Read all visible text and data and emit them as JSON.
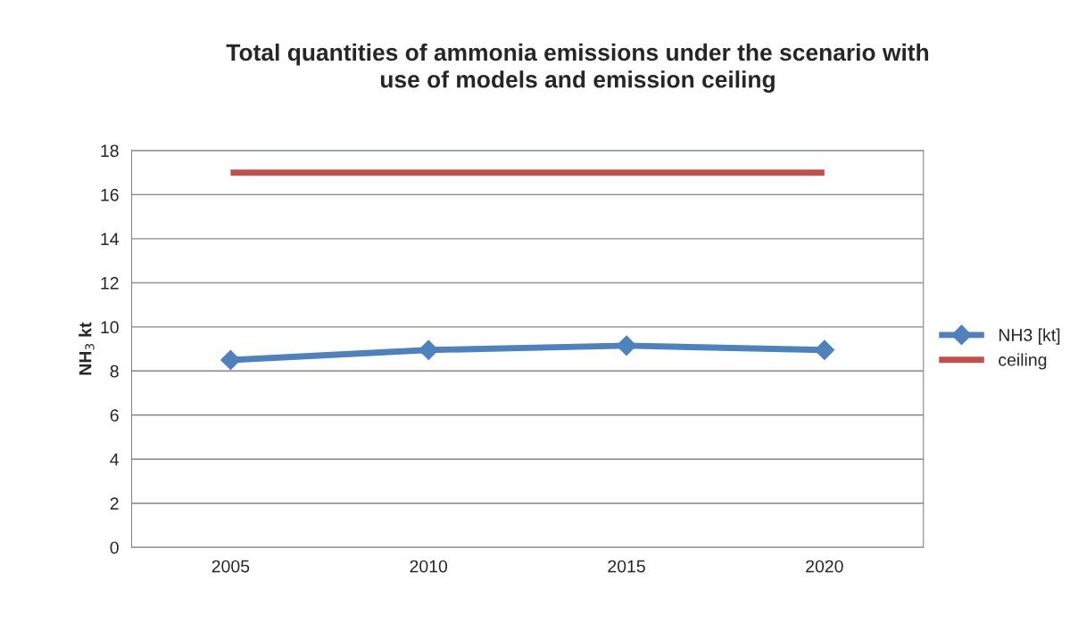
{
  "chart_data": {
    "type": "line",
    "title": "Total quantities of ammonia emissions under the scenario with\nuse of models and emission ceiling",
    "ylabel": "NH$_{3}$ kt",
    "categories": [
      "2005",
      "2010",
      "2015",
      "2020"
    ],
    "series": [
      {
        "name": "NH3 [kt]",
        "color": "#4f81bd",
        "marker": "diamond",
        "values": [
          8.5,
          8.95,
          9.15,
          8.95
        ]
      },
      {
        "name": "ceiling",
        "color": "#c0504d",
        "marker": "none",
        "values": [
          17,
          17,
          17,
          17
        ]
      }
    ],
    "ylim": [
      0,
      18
    ],
    "yticks": [
      0,
      2,
      4,
      6,
      8,
      10,
      12,
      14,
      16,
      18
    ],
    "grid": "y",
    "legend": "right"
  }
}
